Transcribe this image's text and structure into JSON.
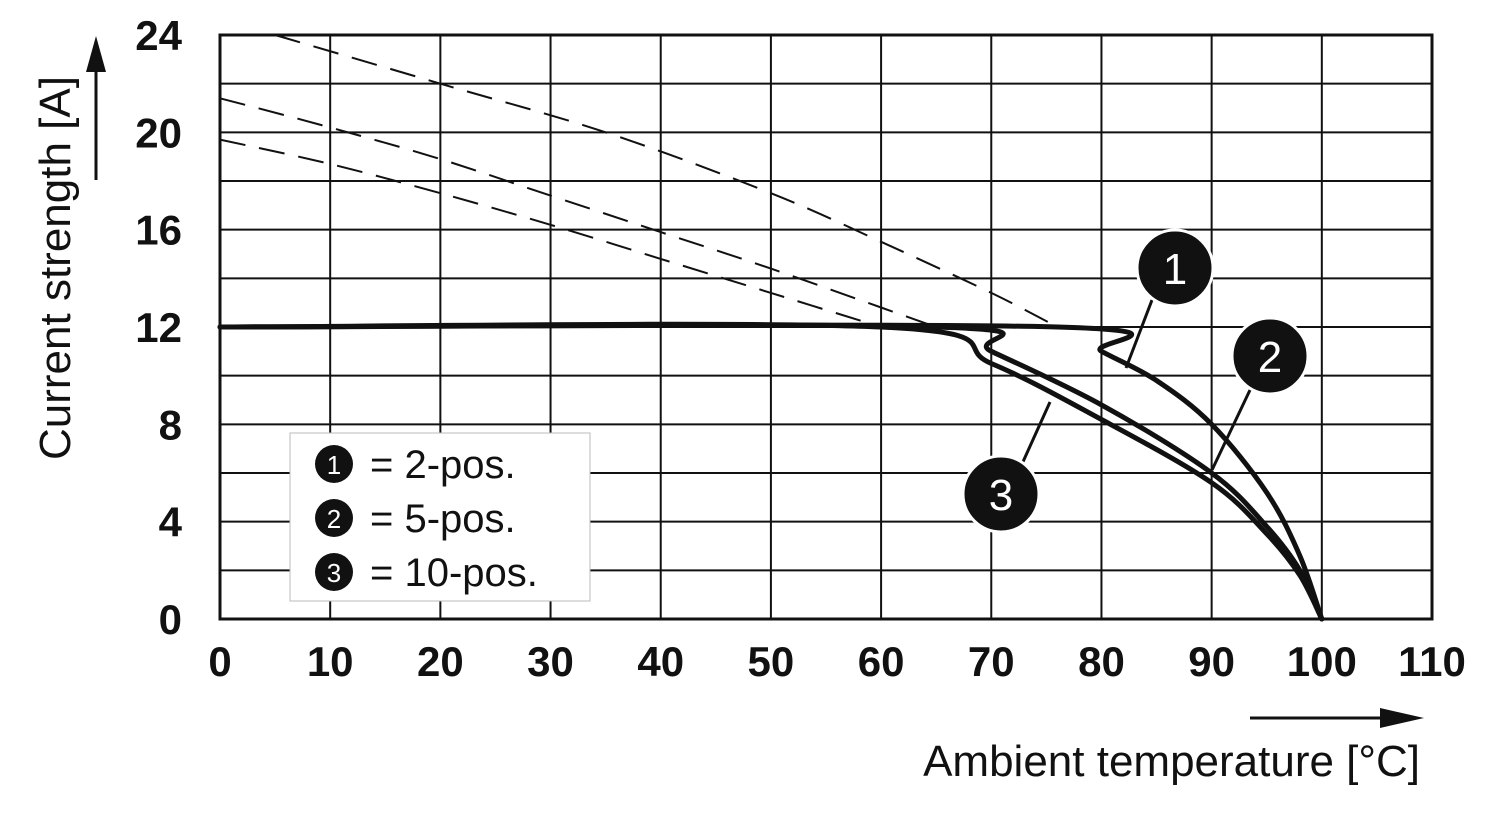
{
  "chart_data": {
    "type": "line",
    "title": "",
    "xlabel": "Ambient temperature [°C]",
    "ylabel": "Current strength [A]",
    "xlim": [
      0,
      110
    ],
    "ylim": [
      0,
      24
    ],
    "x_ticks": [
      "0",
      "10",
      "20",
      "30",
      "40",
      "50",
      "60",
      "70",
      "80",
      "90",
      "100",
      "110"
    ],
    "y_ticks": [
      "0",
      "4",
      "8",
      "12",
      "16",
      "20",
      "24"
    ],
    "grid": true,
    "legend_position": "bottom-left",
    "series": [
      {
        "marker": "1",
        "legend_label": "= 2-pos.",
        "solid": [
          [
            0,
            12
          ],
          [
            76,
            12
          ],
          [
            80,
            11
          ],
          [
            85,
            9.8
          ],
          [
            90,
            8
          ],
          [
            95,
            5.2
          ],
          [
            98,
            2.6
          ],
          [
            100,
            0
          ]
        ],
        "dashed": [
          [
            5,
            24
          ],
          [
            20,
            22
          ],
          [
            35,
            20
          ],
          [
            50,
            17.5
          ],
          [
            60,
            15.5
          ],
          [
            70,
            13.4
          ],
          [
            76,
            12
          ]
        ]
      },
      {
        "marker": "2",
        "legend_label": "= 5-pos.",
        "solid": [
          [
            0,
            12
          ],
          [
            65,
            12
          ],
          [
            70,
            11
          ],
          [
            80,
            8.8
          ],
          [
            90,
            6
          ],
          [
            95,
            3.8
          ],
          [
            98,
            2
          ],
          [
            100,
            0
          ]
        ],
        "dashed": [
          [
            0,
            21.4
          ],
          [
            10,
            20.2
          ],
          [
            20,
            18.9
          ],
          [
            30,
            17.4
          ],
          [
            40,
            15.9
          ],
          [
            50,
            14.4
          ],
          [
            60,
            12.8
          ],
          [
            65,
            12
          ]
        ]
      },
      {
        "marker": "3",
        "legend_label": "= 10-pos.",
        "solid": [
          [
            0,
            12
          ],
          [
            60,
            12
          ],
          [
            70,
            10.5
          ],
          [
            80,
            8.2
          ],
          [
            90,
            5.6
          ],
          [
            95,
            3.5
          ],
          [
            98,
            1.8
          ],
          [
            100,
            0
          ]
        ],
        "dashed": [
          [
            0,
            19.7
          ],
          [
            10,
            18.7
          ],
          [
            20,
            17.5
          ],
          [
            30,
            16.2
          ],
          [
            40,
            14.8
          ],
          [
            50,
            13.4
          ],
          [
            60,
            12
          ]
        ]
      }
    ]
  },
  "legend_entries": [
    {
      "marker": "1",
      "label": "= 2-pos."
    },
    {
      "marker": "2",
      "label": "= 5-pos."
    },
    {
      "marker": "3",
      "label": "= 10-pos."
    }
  ]
}
